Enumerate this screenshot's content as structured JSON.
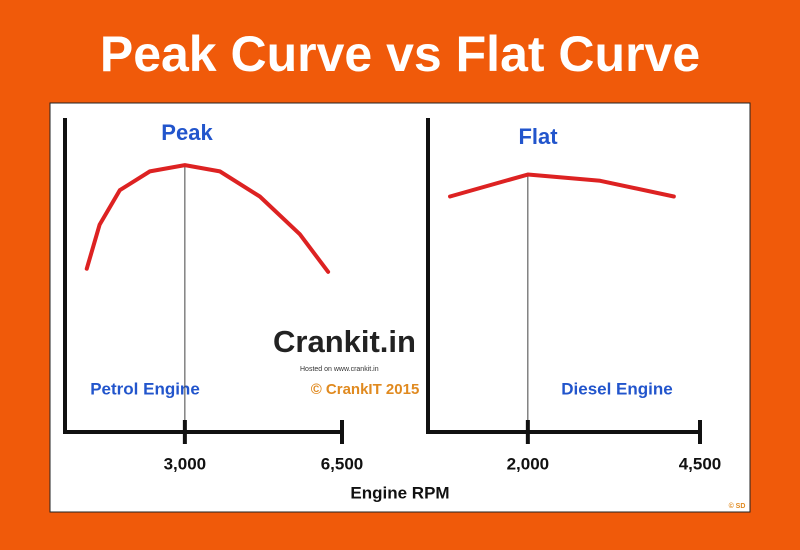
{
  "title": "Peak Curve vs Flat Curve",
  "x_label": "Engine RPM",
  "logo": {
    "name": "Crankit.in",
    "tagline": "Hosted on www.crankit.in"
  },
  "copyright": "© CrankIT 2015",
  "signature": "© SD",
  "chart_data": [
    {
      "type": "line",
      "title": "Peak",
      "annotation": "Petrol Engine",
      "x": [
        815,
        1100,
        1550,
        2220,
        3000,
        3780,
        4670,
        5560,
        6190
      ],
      "series": [
        {
          "color": "#dd2222",
          "values": [
            52,
            66,
            77,
            83,
            85,
            83,
            75,
            63,
            51
          ]
        }
      ],
      "xlim": [
        330,
        6500
      ],
      "ylim": [
        0,
        100
      ],
      "xticks": [
        {
          "value": 3000,
          "label": "3,000"
        },
        {
          "value": 6500,
          "label": "6,500"
        }
      ],
      "peak_x": 3000
    },
    {
      "type": "line",
      "title": "Flat",
      "annotation": "Diesel Engine",
      "x": [
        870,
        2000,
        3050,
        4120
      ],
      "series": [
        {
          "color": "#dd2222",
          "values": [
            75,
            82,
            80,
            75
          ]
        }
      ],
      "xlim": [
        550,
        4500
      ],
      "ylim": [
        0,
        100
      ],
      "xticks": [
        {
          "value": 2000,
          "label": "2,000"
        },
        {
          "value": 4500,
          "label": "4,500"
        }
      ],
      "peak_x": 2000
    }
  ]
}
